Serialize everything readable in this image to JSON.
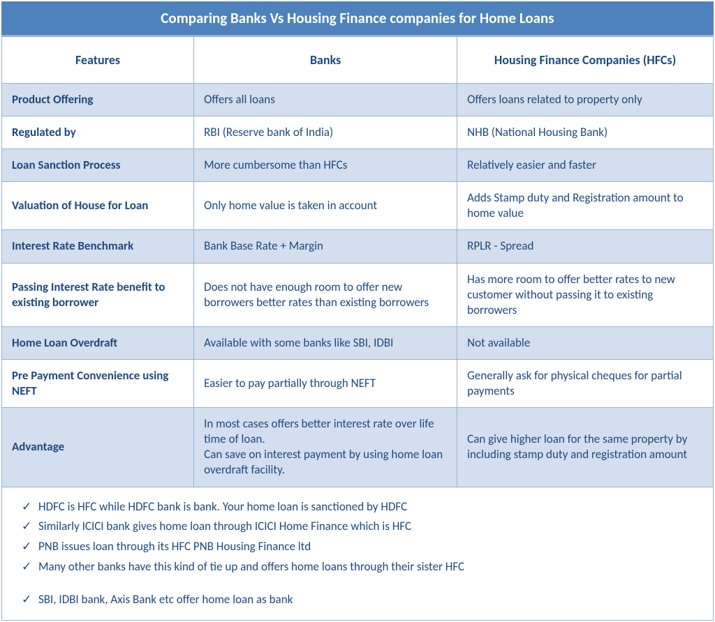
{
  "title": "Comparing Banks Vs Housing Finance companies for Home Loans",
  "colors": {
    "header_bg": "#4f81bd",
    "header_text": "#ffffff",
    "border": "#95b3d7",
    "text": "#1f497d",
    "row_shade": "#d3dfee",
    "row_plain": "#ffffff"
  },
  "fontsizes": {
    "title": 21,
    "header": 18,
    "body": 17
  },
  "columns": {
    "features": "Features",
    "banks": "Banks",
    "hfc": "Housing Finance Companies (HFCs)"
  },
  "column_widths_pct": [
    27,
    37,
    36
  ],
  "rows": [
    {
      "feature": "Product Offering",
      "banks": "Offers all loans",
      "hfc": "Offers loans related to property only"
    },
    {
      "feature": "Regulated by",
      "banks": "RBI (Reserve bank of India)",
      "hfc": "NHB (National Housing Bank)"
    },
    {
      "feature": "Loan Sanction Process",
      "banks": "More cumbersome than HFCs",
      "hfc": "Relatively easier and faster"
    },
    {
      "feature": "Valuation of House for Loan",
      "banks": "Only home value is taken in account",
      "hfc": "Adds Stamp duty and Registration amount to home value"
    },
    {
      "feature": "Interest Rate Benchmark",
      "banks": "Bank Base Rate + Margin",
      "hfc": "RPLR - Spread"
    },
    {
      "feature": "Passing Interest Rate benefit to existing borrower",
      "banks": "Does not have enough room to offer new borrowers better rates than existing borrowers",
      "hfc": "Has more room to offer better rates to new customer without passing it to existing borrowers"
    },
    {
      "feature": "Home Loan Overdraft",
      "banks": "Available with some banks like SBI, IDBI",
      "hfc": "Not available"
    },
    {
      "feature": "Pre Payment Convenience using NEFT",
      "banks": "Easier to pay partially through NEFT",
      "hfc": "Generally ask for physical cheques for partial payments"
    },
    {
      "feature": "Advantage",
      "banks": "In most cases offers better interest rate over life time of loan.\nCan save on interest payment by using home loan overdraft facility.",
      "hfc": "Can give higher loan for the same property by including stamp duty and registration amount"
    }
  ],
  "notes": {
    "group1": [
      "HDFC is HFC while HDFC bank is bank. Your home loan is sanctioned by HDFC",
      "Similarly ICICI bank gives home loan through ICICI Home Finance which is HFC",
      "PNB issues loan through its HFC PNB Housing Finance ltd",
      "Many other banks have this kind of tie up and offers home loans through their sister HFC"
    ],
    "group2": [
      "SBI, IDBI bank, Axis Bank etc offer home loan as bank"
    ]
  }
}
